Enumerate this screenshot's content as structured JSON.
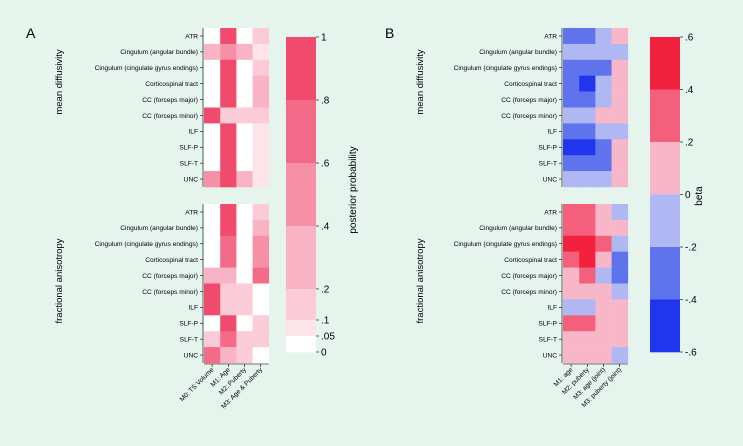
{
  "chart_data": [
    {
      "panel_label": "A",
      "type": "heatmap",
      "rows": [
        "ATR",
        "Cingulum (angular bundle)",
        "Cingulum (cingulate gyrus endings)",
        "Corticospinal tract",
        "CC (forceps major)",
        "CC (forceps minor)",
        "ILF",
        "SLF-P",
        "SLF-T",
        "UNC"
      ],
      "columns": [
        "M0: TS Volume",
        "M1: Age",
        "M2: Puberty",
        "M3: Age & Puberty"
      ],
      "groups": [
        {
          "label": "mean diffusivity",
          "values": [
            [
              0,
              0.95,
              0,
              0.15
            ],
            [
              0.35,
              0.45,
              0.35,
              0.05
            ],
            [
              0,
              0.95,
              0,
              0.1
            ],
            [
              0,
              0.95,
              0,
              0.3
            ],
            [
              0,
              0.95,
              0,
              0.3
            ],
            [
              0.92,
              0.1,
              0.1,
              0.1
            ],
            [
              0,
              0.95,
              0,
              0.08
            ],
            [
              0,
              0.95,
              0,
              0.08
            ],
            [
              0,
              0.95,
              0,
              0.08
            ],
            [
              0.55,
              0.85,
              0.35,
              0.05
            ]
          ]
        },
        {
          "label": "fractional anisotropy",
          "values": [
            [
              0,
              0.95,
              0,
              0.1
            ],
            [
              0,
              0.95,
              0,
              0.2
            ],
            [
              0,
              0.65,
              0,
              0.4
            ],
            [
              0,
              0.65,
              0,
              0.55
            ],
            [
              0.3,
              0.3,
              0,
              0.6
            ],
            [
              0.92,
              0.1,
              0.1,
              0
            ],
            [
              0.92,
              0.1,
              0.1,
              0
            ],
            [
              0,
              0.95,
              0,
              0.1
            ],
            [
              0.15,
              0.65,
              0.15,
              0.15
            ],
            [
              0.75,
              0.3,
              0.15,
              0
            ]
          ]
        }
      ],
      "colorbar": {
        "label": "posterior probability",
        "ticks": [
          "1",
          ".8",
          ".6",
          ".4",
          ".2",
          ".1",
          ".05",
          "0"
        ],
        "range": [
          0,
          1
        ]
      }
    },
    {
      "panel_label": "B",
      "type": "heatmap",
      "rows": [
        "ATR",
        "Cingulum (angular bundle)",
        "Cingulum (cingulate gyrus endings)",
        "Corticospinal tract",
        "CC (forceps major)",
        "CC (forceps minor)",
        "ILF",
        "SLF-P",
        "SLF-T",
        "UNC"
      ],
      "columns": [
        "M1: age",
        "M2: puberty",
        "M3: age (joint)",
        "M3: puberty (joint)"
      ],
      "groups": [
        {
          "label": "mean diffusivity",
          "values": [
            [
              -0.25,
              -0.25,
              -0.1,
              0.05
            ],
            [
              -0.1,
              -0.1,
              -0.1,
              -0.1
            ],
            [
              -0.25,
              -0.25,
              -0.25,
              0.1
            ],
            [
              -0.25,
              -0.5,
              -0.1,
              0.1
            ],
            [
              -0.25,
              -0.25,
              -0.1,
              0.1
            ],
            [
              -0.1,
              -0.1,
              0.1,
              0.1
            ],
            [
              -0.25,
              -0.25,
              -0.1,
              -0.1
            ],
            [
              -0.5,
              -0.5,
              -0.25,
              0.1
            ],
            [
              -0.25,
              -0.25,
              -0.25,
              0.1
            ],
            [
              -0.1,
              -0.1,
              -0.1,
              0.1
            ]
          ]
        },
        {
          "label": "fractional anisotropy",
          "values": [
            [
              0.3,
              0.3,
              0.1,
              -0.1
            ],
            [
              0.3,
              0.3,
              0.1,
              0.1
            ],
            [
              0.5,
              0.5,
              0.3,
              -0.1
            ],
            [
              0.3,
              0.5,
              0.1,
              -0.25
            ],
            [
              0.1,
              0.3,
              -0.1,
              -0.25
            ],
            [
              0.1,
              0.1,
              0.1,
              -0.1
            ],
            [
              -0.1,
              -0.1,
              0.1,
              0.1
            ],
            [
              0.3,
              0.3,
              0.1,
              0.1
            ],
            [
              0.1,
              0.1,
              0.1,
              0.1
            ],
            [
              0.1,
              0.1,
              0.1,
              -0.1
            ]
          ]
        }
      ],
      "colorbar": {
        "label": "beta",
        "ticks": [
          ".6",
          ".4",
          ".2",
          "0",
          "-.2",
          "-.4",
          "-.6"
        ],
        "range": [
          -0.6,
          0.6
        ]
      }
    }
  ]
}
